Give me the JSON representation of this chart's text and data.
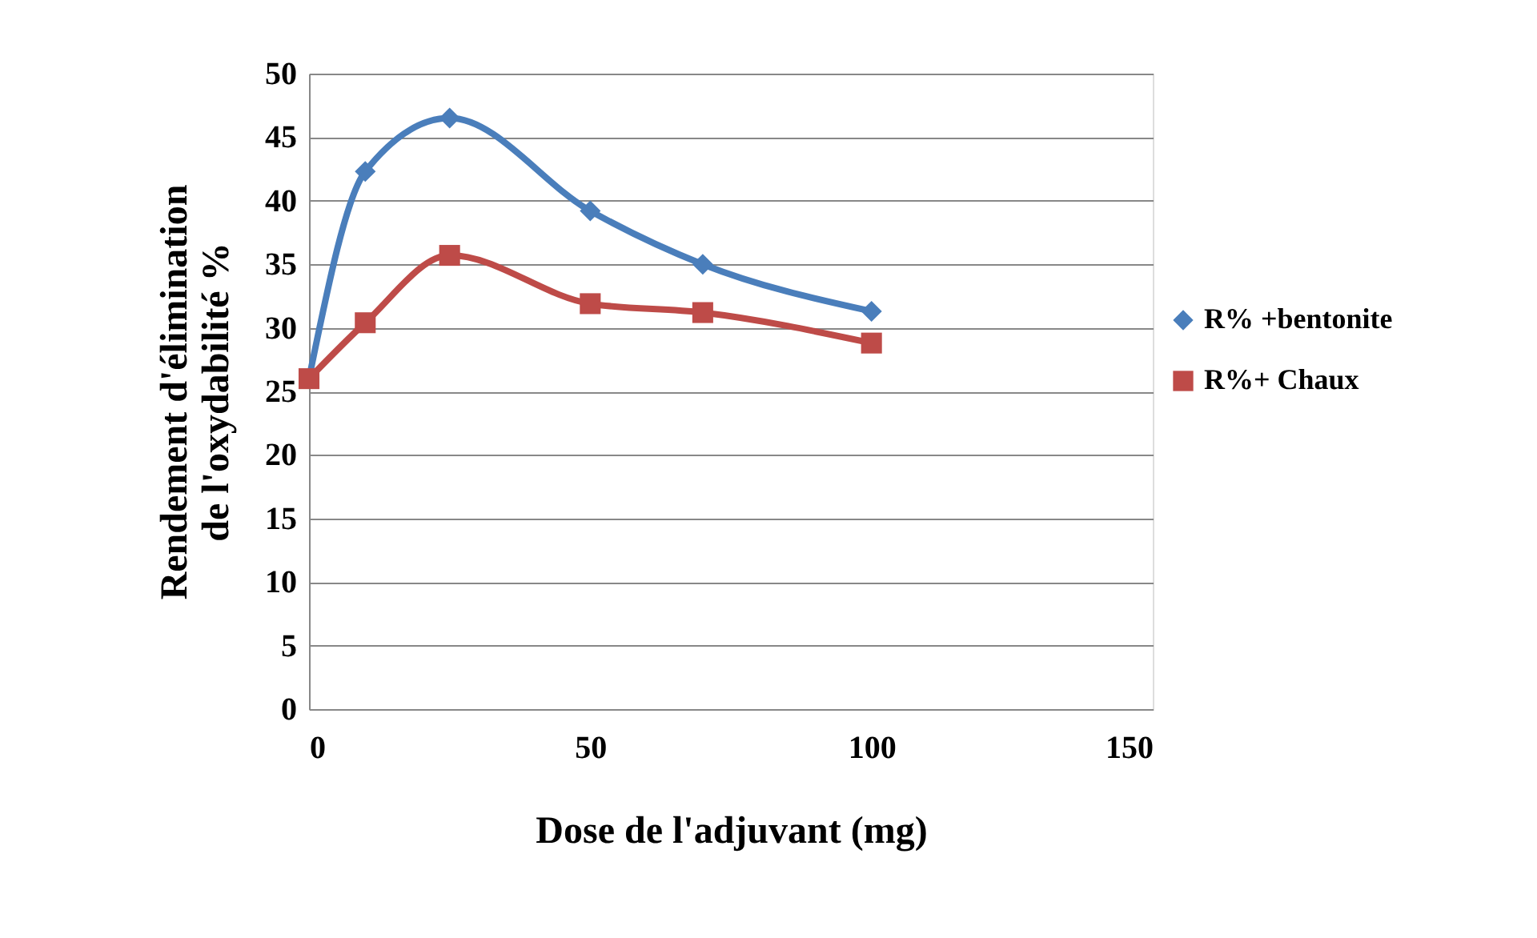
{
  "chart_data": {
    "type": "line",
    "xlabel": "Dose de l'adjuvant (mg)",
    "ylabel": "Rendement d'élimination de l'oxydabilité %",
    "x": [
      0,
      10,
      25,
      50,
      70,
      100
    ],
    "series": [
      {
        "name": "R% +bentonite",
        "color": "#4a7ebb",
        "marker": "diamond",
        "values": [
          26,
          42.3,
          46.5,
          39.2,
          35,
          31.3
        ]
      },
      {
        "name": "R%+ Chaux",
        "color": "#be4b48",
        "marker": "square",
        "values": [
          26,
          30.4,
          35.7,
          31.9,
          31.2,
          28.8
        ]
      }
    ],
    "xlim": [
      0,
      150
    ],
    "xticks": [
      0,
      50,
      100,
      150
    ],
    "ylim": [
      0,
      50
    ],
    "yticks": [
      0,
      5,
      10,
      15,
      20,
      25,
      30,
      35,
      40,
      45,
      50
    ],
    "grid": "y",
    "legend": "right",
    "line_style": "solid"
  }
}
